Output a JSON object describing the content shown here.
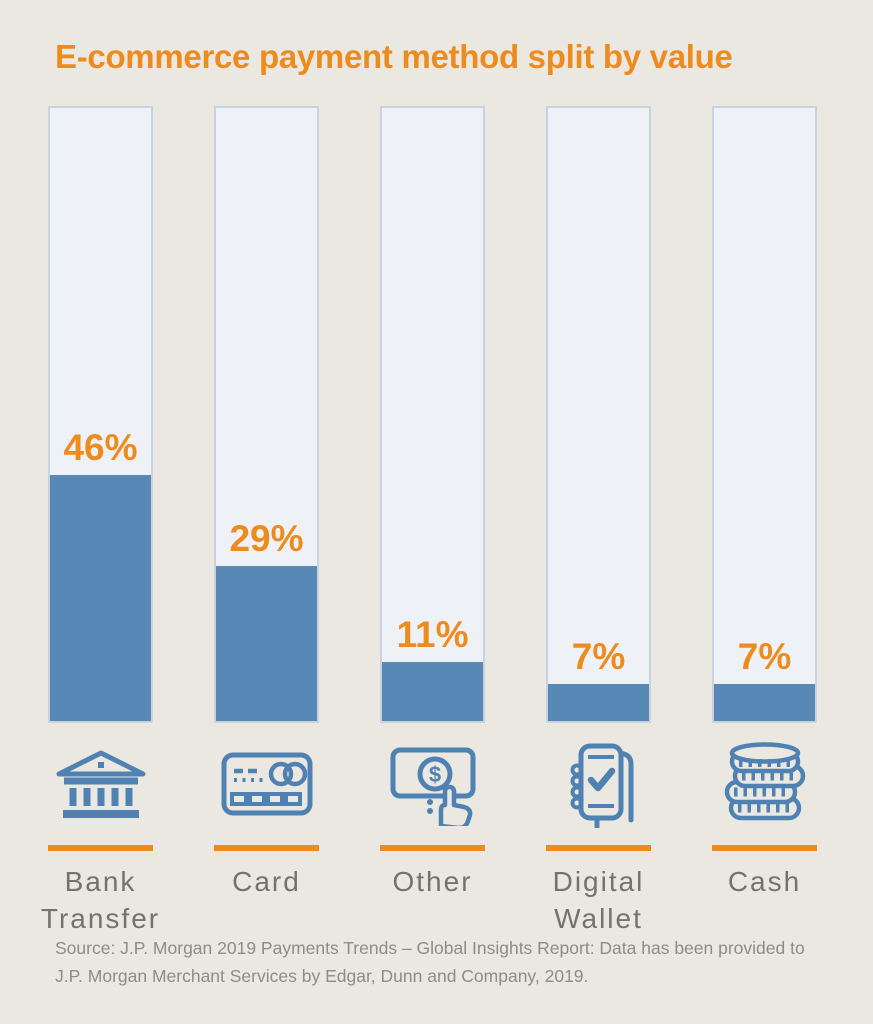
{
  "title": "E-commerce payment method split by value",
  "source_note": "Source: J.P. Morgan 2019 Payments Trends – Global Insights Report: Data has been provided to J.P. Morgan Merchant Services by Edgar, Dunn and Company, 2019.",
  "colors": {
    "accent_orange": "#ee8b1f",
    "bar_blue": "#5888b5",
    "track_fill": "#eef2f7",
    "track_border": "#c9d3df",
    "background": "#ebe8e1",
    "category_label_gray": "#74726c",
    "source_gray": "#8e8c87",
    "icon_blue": "#4f82b2"
  },
  "chart_data": {
    "type": "bar",
    "title": "E-commerce payment method split by value",
    "categories": [
      "Bank Transfer",
      "Card",
      "Other",
      "Digital Wallet",
      "Cash"
    ],
    "values": [
      46,
      29,
      11,
      7,
      7
    ],
    "value_labels": [
      "46%",
      "29%",
      "11%",
      "7%",
      "7%"
    ],
    "unit": "%",
    "ylim": [
      0,
      100
    ],
    "grid": false,
    "legend": "none",
    "orientation": "vertical",
    "bar_color": "#5888b5",
    "value_label_color": "#ee8b1f",
    "icons": [
      "bank-building",
      "credit-card",
      "hand-pressing-money",
      "smartphone-checkmark",
      "coin-stack"
    ]
  }
}
